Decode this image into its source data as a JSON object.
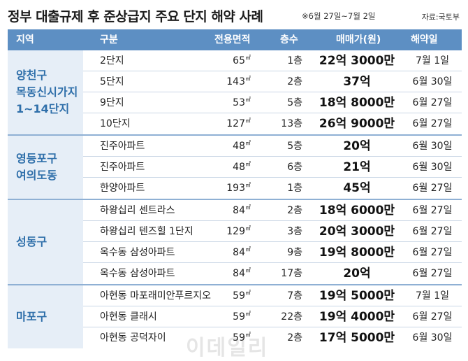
{
  "header": {
    "title": "정부 대출규제 후 준상급지 주요 단지 해약 사례",
    "subtitle": "※6월 27일~7월 2일",
    "source": "자료:국토부"
  },
  "columns": {
    "region": "지역",
    "name": "구분",
    "area": "전용면적",
    "floor": "층수",
    "price": "매매가(원)",
    "date": "해약일"
  },
  "area_unit": "㎡",
  "watermark": "이데일리",
  "groups": [
    {
      "region": "양천구\n목동신시가지\n1~14단지",
      "rows": [
        {
          "name": "2단지",
          "area": "65",
          "floor": "1층",
          "price": "22억 3000만",
          "date": "7월 1일"
        },
        {
          "name": "5단지",
          "area": "143",
          "floor": "2층",
          "price": "37억",
          "date": "6월 30일"
        },
        {
          "name": "9단지",
          "area": "53",
          "floor": "5층",
          "price": "18억 8000만",
          "date": "6월 27일"
        },
        {
          "name": "10단지",
          "area": "127",
          "floor": "13층",
          "price": "26억 9000만",
          "date": "6월 27일"
        }
      ]
    },
    {
      "region": "영등포구\n여의도동",
      "rows": [
        {
          "name": "진주아파트",
          "area": "48",
          "floor": "5층",
          "price": "20억",
          "date": "6월 30일"
        },
        {
          "name": "진주아파트",
          "area": "48",
          "floor": "6층",
          "price": "21억",
          "date": "6월 30일"
        },
        {
          "name": "한양아파트",
          "area": "193",
          "floor": "1층",
          "price": "45억",
          "date": "6월 27일"
        }
      ]
    },
    {
      "region": "성동구",
      "rows": [
        {
          "name": "하왕십리 센트라스",
          "area": "84",
          "floor": "2층",
          "price": "18억 6000만",
          "date": "6월 27일"
        },
        {
          "name": "하왕십리 텐즈힐 1단지",
          "area": "129",
          "floor": "3층",
          "price": "20억 3000만",
          "date": "6월 27일"
        },
        {
          "name": "옥수동 삼성아파트",
          "area": "84",
          "floor": "9층",
          "price": "19억 8000만",
          "date": "6월 27일"
        },
        {
          "name": "옥수동 삼성아파트",
          "area": "84",
          "floor": "17층",
          "price": "20억",
          "date": "6월 27일"
        }
      ]
    },
    {
      "region": "마포구",
      "rows": [
        {
          "name": "아현동 마포래미안푸르지오",
          "area": "59",
          "floor": "7층",
          "price": "19억 5000만",
          "date": "7월 1일"
        },
        {
          "name": "아현동 클래시",
          "area": "59",
          "floor": "22층",
          "price": "19억 4000만",
          "date": "6월 27일"
        },
        {
          "name": "아현동 공덕자이",
          "area": "59",
          "floor": "2층",
          "price": "17억 5000만",
          "date": "6월 30일"
        }
      ]
    }
  ]
}
